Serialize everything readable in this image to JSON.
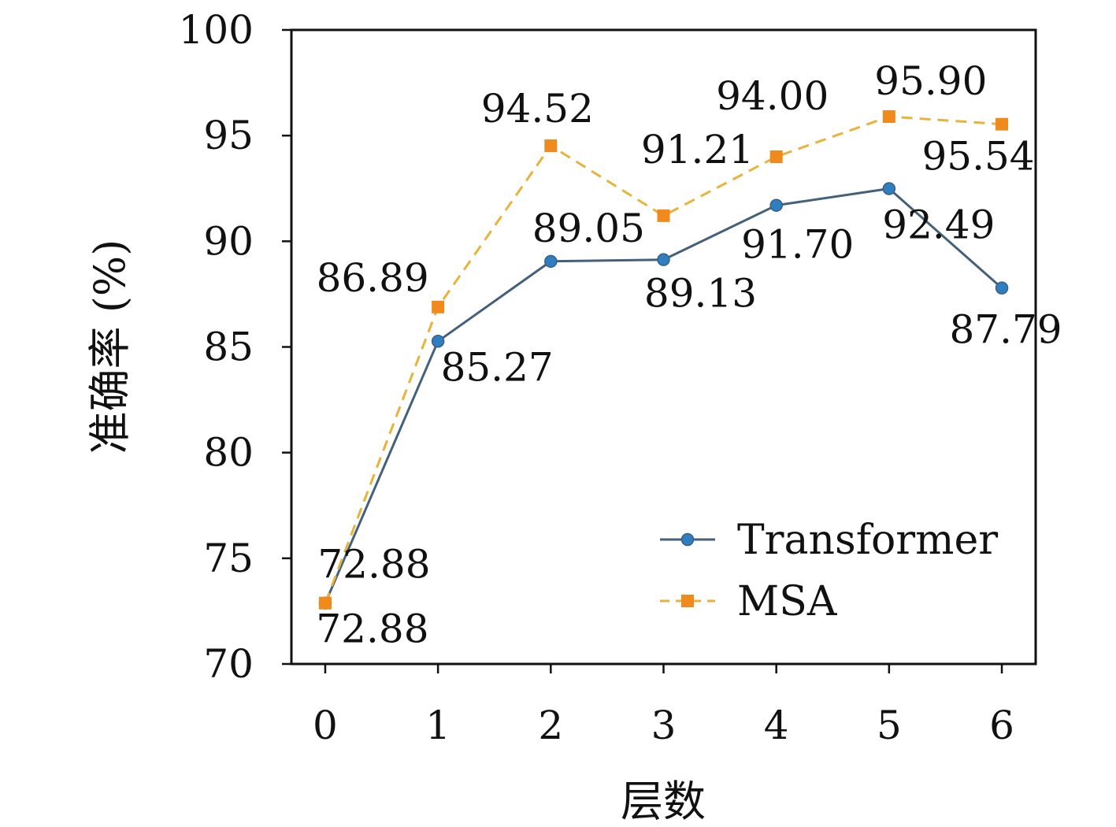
{
  "chart_data": {
    "type": "line",
    "xlabel": "层数",
    "ylabel": "准确率 (%)",
    "x": [
      0,
      1,
      2,
      3,
      4,
      5,
      6
    ],
    "xticks": [
      "0",
      "1",
      "2",
      "3",
      "4",
      "5",
      "6"
    ],
    "xlim": [
      -0.3,
      6.3
    ],
    "ylim": [
      70,
      100
    ],
    "yticks": [
      "70",
      "75",
      "80",
      "85",
      "90",
      "95",
      "100"
    ],
    "grid": false,
    "legend_position": "bottom-right",
    "series": [
      {
        "name": "Transformer",
        "values": [
          72.88,
          85.27,
          89.05,
          89.13,
          91.7,
          92.49,
          87.79
        ],
        "labels": [
          "72.88",
          "85.27",
          "89.05",
          "89.13",
          "91.70",
          "92.49",
          "87.79"
        ],
        "color": "#2f7ebf",
        "line_color": "#44607a",
        "line_style": "solid",
        "marker": "circle"
      },
      {
        "name": "MSA",
        "values": [
          72.88,
          86.89,
          94.52,
          91.21,
          94.0,
          95.9,
          95.54
        ],
        "labels": [
          "72.88",
          "86.89",
          "94.52",
          "91.21",
          "94.00",
          "95.90",
          "95.54"
        ],
        "color": "#f08a1c",
        "line_color": "#e8b33a",
        "line_style": "dashed",
        "marker": "square"
      }
    ]
  }
}
